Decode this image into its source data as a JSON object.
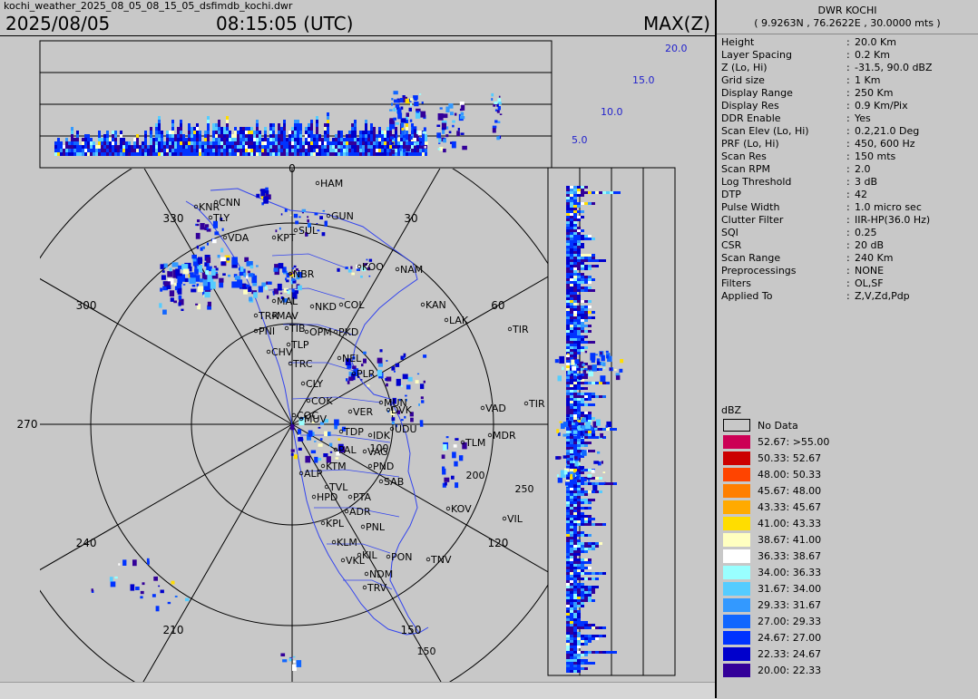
{
  "header": {
    "filename": "kochi_weather_2025_08_05_08_15_05_dsfimdb_kochi.dwr",
    "date": "2025/08/05",
    "time": "08:15:05 (UTC)",
    "product": "MAX(Z)"
  },
  "station": {
    "title": "DWR KOCHI",
    "coords": "( 9.9263N , 76.2622E , 30.0000 mts )"
  },
  "params": [
    {
      "key": "Height",
      "value": "20.0 Km"
    },
    {
      "key": "Layer Spacing",
      "value": "0.2 Km"
    },
    {
      "key": "Z (Lo, Hi)",
      "value": "-31.5, 90.0 dBZ"
    },
    {
      "key": "Grid size",
      "value": "1 Km"
    },
    {
      "key": "Display Range",
      "value": "250 Km"
    },
    {
      "key": "Display Res",
      "value": "0.9 Km/Pix"
    },
    {
      "key": "DDR Enable",
      "value": "Yes"
    },
    {
      "key": "Scan Elev (Lo, Hi)",
      "value": "0.2,21.0 Deg"
    },
    {
      "key": "PRF (Lo, Hi)",
      "value": "450, 600 Hz"
    },
    {
      "key": "Scan Res",
      "value": "150 mts"
    },
    {
      "key": "Scan RPM",
      "value": "2.0"
    },
    {
      "key": "Log Threshold",
      "value": "3 dB"
    },
    {
      "key": "DTP",
      "value": "42"
    },
    {
      "key": "Pulse Width",
      "value": "1.0 micro sec"
    },
    {
      "key": "Clutter Filter",
      "value": "IIR-HP(36.0 Hz)"
    },
    {
      "key": "SQI",
      "value": "0.25"
    },
    {
      "key": "CSR",
      "value": "20 dB"
    },
    {
      "key": "Scan Range",
      "value": "240 Km"
    },
    {
      "key": "Preprocessings",
      "value": "NONE"
    },
    {
      "key": "Filters",
      "value": "OL,SF"
    },
    {
      "key": "Applied To",
      "value": "Z,V,Zd,Pdp"
    }
  ],
  "legend": {
    "title": "dBZ",
    "nodata_label": "No Data",
    "entries": [
      {
        "label": "52.67: >55.00",
        "color": "#cc0055"
      },
      {
        "label": "50.33: 52.67",
        "color": "#cc0000"
      },
      {
        "label": "48.00: 50.33",
        "color": "#ff4400"
      },
      {
        "label": "45.67: 48.00",
        "color": "#ff7f00"
      },
      {
        "label": "43.33: 45.67",
        "color": "#ffaa00"
      },
      {
        "label": "41.00: 43.33",
        "color": "#ffdd00"
      },
      {
        "label": "38.67: 41.00",
        "color": "#ffffc0"
      },
      {
        "label": "36.33: 38.67",
        "color": "#ffffff"
      },
      {
        "label": "34.00: 36.33",
        "color": "#99ffff"
      },
      {
        "label": "31.67: 34.00",
        "color": "#55ccff"
      },
      {
        "label": "29.33: 31.67",
        "color": "#3399ff"
      },
      {
        "label": "27.00: 29.33",
        "color": "#1166ff"
      },
      {
        "label": "24.67: 27.00",
        "color": "#0033ff"
      },
      {
        "label": "22.33: 24.67",
        "color": "#0000cc"
      },
      {
        "label": "20.00: 22.33",
        "color": "#330099"
      }
    ]
  },
  "ppi": {
    "range_labels": [
      "100",
      "150",
      "200",
      "250"
    ],
    "azimuths": [
      {
        "deg": 0,
        "label": "0"
      },
      {
        "deg": 30,
        "label": "30"
      },
      {
        "deg": 60,
        "label": "60"
      },
      {
        "deg": 120,
        "label": "120"
      },
      {
        "deg": 150,
        "label": "150"
      },
      {
        "deg": 210,
        "label": "210"
      },
      {
        "deg": 240,
        "label": "240"
      },
      {
        "deg": 270,
        "label": "270"
      },
      {
        "deg": 300,
        "label": "300"
      },
      {
        "deg": 330,
        "label": "330"
      }
    ],
    "places": [
      "HAM",
      "GUN",
      "SUL",
      "KPT",
      "KNR",
      "CNN",
      "TLY",
      "VDA",
      "NBR",
      "KOO",
      "NAM",
      "KAN",
      "LAK",
      "TIR",
      "MAL",
      "TRR",
      "PNI",
      "TIB",
      "OPM",
      "PKD",
      "CHV",
      "TLP",
      "NEL",
      "TRC",
      "PLR",
      "CLY",
      "COK",
      "MUN",
      "DVK",
      "COC",
      "MUV",
      "VER",
      "UDU",
      "TDP",
      "IDK",
      "PAL",
      "VAG",
      "KTM",
      "PND",
      "ALP",
      "SAB",
      "TVL",
      "PTA",
      "HPD",
      "ADR",
      "KPL",
      "PNL",
      "KOV",
      "VIL",
      "KLM",
      "KIL",
      "PON",
      "TNV",
      "VKL",
      "NDM",
      "TRV",
      "MDR",
      "TLM",
      "VAD",
      "TIR",
      "COL",
      "NKD",
      "MAV"
    ]
  },
  "cross_sections": {
    "height_labels": [
      "20.0",
      "15.0",
      "10.0",
      "5.0"
    ]
  }
}
